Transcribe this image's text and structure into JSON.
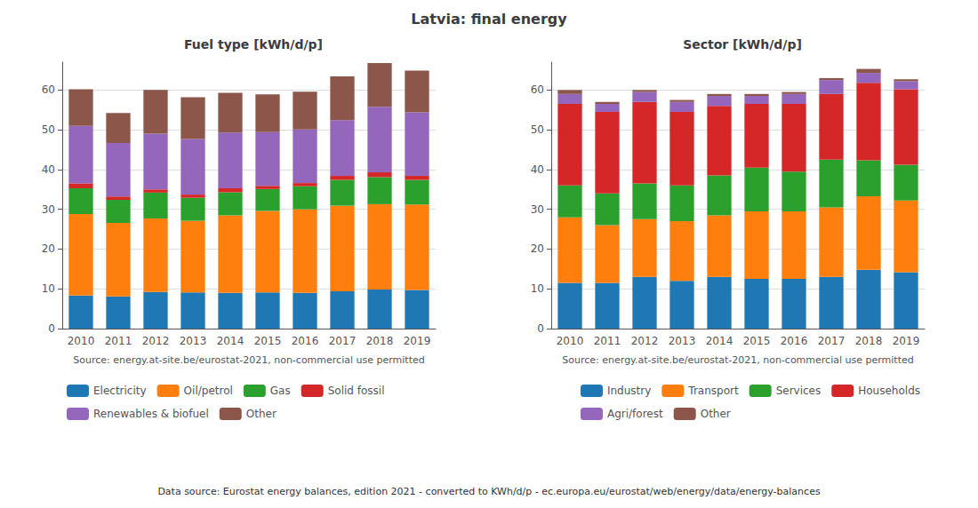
{
  "title": "Latvia: final energy",
  "annotations": [
    "Data source: Eurostat energy balances, edition 2021 - converted to KWh/d/p - ec.europa.eu/eurostat/web/energy/data/energy-balances"
  ],
  "chart_data": [
    {
      "type": "bar",
      "stacked": true,
      "title": "Fuel type [kWh/d/p]",
      "xlabel": "Source: energy.at-site.be/eurostat-2021, non-commercial use permitted",
      "categories": [
        "2010",
        "2011",
        "2012",
        "2013",
        "2014",
        "2015",
        "2016",
        "2017",
        "2018",
        "2019"
      ],
      "series": [
        {
          "name": "Electricity",
          "color": "#1f77b4",
          "values": [
            8.3,
            8.1,
            9.2,
            9.1,
            9.0,
            9.1,
            9.0,
            9.4,
            9.8,
            9.7
          ]
        },
        {
          "name": "Oil/petrol",
          "color": "#ff7f0e",
          "values": [
            20.5,
            18.5,
            18.5,
            18.0,
            19.5,
            20.5,
            21.0,
            21.5,
            21.5,
            21.5
          ]
        },
        {
          "name": "Gas",
          "color": "#2ca02c",
          "values": [
            6.5,
            5.8,
            6.5,
            5.8,
            5.8,
            5.5,
            5.8,
            6.5,
            6.8,
            6.2
          ]
        },
        {
          "name": "Solid fossil",
          "color": "#d62728",
          "values": [
            1.2,
            0.8,
            0.8,
            0.8,
            1.0,
            0.8,
            0.8,
            1.0,
            1.2,
            1.0
          ]
        },
        {
          "name": "Renewables & biofuel",
          "color": "#9467bd",
          "values": [
            14.5,
            13.5,
            14.0,
            14.0,
            14.0,
            13.5,
            13.5,
            14.0,
            16.5,
            16.0
          ]
        },
        {
          "name": "Other",
          "color": "#8c564b",
          "values": [
            9.2,
            7.5,
            11.0,
            10.5,
            10.0,
            9.5,
            9.5,
            11.0,
            11.0,
            10.5
          ]
        }
      ],
      "ylim": [
        0,
        67
      ],
      "yticks": [
        0,
        10,
        20,
        30,
        40,
        50,
        60
      ],
      "grid": true,
      "legend": "lower left"
    },
    {
      "type": "bar",
      "stacked": true,
      "title": "Sector [kWh/d/p]",
      "xlabel": "Source: energy.at-site.be/eurostat-2021, non-commercial use permitted",
      "categories": [
        "2010",
        "2011",
        "2012",
        "2013",
        "2014",
        "2015",
        "2016",
        "2017",
        "2018",
        "2019"
      ],
      "series": [
        {
          "name": "Industry",
          "color": "#1f77b4",
          "values": [
            11.5,
            11.5,
            13.0,
            12.0,
            13.0,
            12.5,
            12.5,
            13.0,
            14.8,
            14.2
          ]
        },
        {
          "name": "Transport",
          "color": "#ff7f0e",
          "values": [
            16.5,
            14.5,
            14.5,
            15.0,
            15.5,
            17.0,
            17.0,
            17.5,
            18.5,
            18.0
          ]
        },
        {
          "name": "Services",
          "color": "#2ca02c",
          "values": [
            8.0,
            8.0,
            9.0,
            9.0,
            10.0,
            11.0,
            10.0,
            12.0,
            9.0,
            9.0
          ]
        },
        {
          "name": "Households",
          "color": "#d62728",
          "values": [
            20.5,
            20.5,
            20.5,
            18.5,
            17.5,
            16.0,
            17.0,
            16.5,
            19.5,
            19.0
          ]
        },
        {
          "name": "Agri/forest",
          "color": "#9467bd",
          "values": [
            2.5,
            2.0,
            2.5,
            2.5,
            2.5,
            2.0,
            2.5,
            3.5,
            2.5,
            2.0
          ]
        },
        {
          "name": "Other",
          "color": "#8c564b",
          "values": [
            1.0,
            0.5,
            0.5,
            0.5,
            0.5,
            0.5,
            0.5,
            0.5,
            1.0,
            0.5
          ]
        }
      ],
      "ylim": [
        0,
        67
      ],
      "yticks": [
        0,
        10,
        20,
        30,
        40,
        50,
        60
      ],
      "grid": true,
      "legend": "lower right"
    }
  ]
}
